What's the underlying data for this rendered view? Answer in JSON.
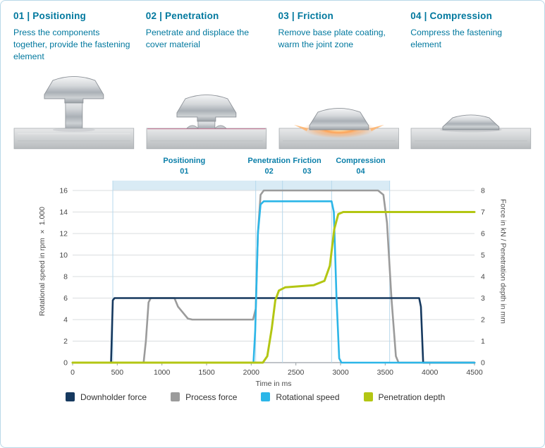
{
  "steps": [
    {
      "heading": "01 | Positioning",
      "description": "Press the components together, provide the fastening element"
    },
    {
      "heading": "02 | Penetration",
      "description": "Penetrate and displace the cover material"
    },
    {
      "heading": "03 | Friction",
      "description": "Remove base plate coating, warm the joint zone"
    },
    {
      "heading": "04 | Compression",
      "description": "Compress the fastening element"
    }
  ],
  "chart_data": {
    "type": "line",
    "x_axis": {
      "label": "Time in ms",
      "min": 0,
      "max": 4500,
      "ticks": [
        0,
        500,
        1000,
        1500,
        2000,
        2500,
        3000,
        3500,
        4000,
        4500
      ]
    },
    "y_left": {
      "label": "Rotational speed in rpm × 1.000",
      "min": 0,
      "max": 16,
      "ticks": [
        0,
        2,
        4,
        6,
        8,
        10,
        12,
        14,
        16
      ]
    },
    "y_right": {
      "label": "Force in kN / Penetration depth in mm",
      "min": 0,
      "max": 8,
      "ticks": [
        0,
        1,
        2,
        3,
        4,
        5,
        6,
        7,
        8
      ]
    },
    "grid": true,
    "band_color": "#d9ebf5",
    "phase_line_color": "#b7d9ec",
    "phase_text_color": "#0b7fa9",
    "phases": [
      {
        "label": "Positioning",
        "number": "01",
        "start": 450,
        "end": 2050
      },
      {
        "label": "Penetration",
        "number": "02",
        "start": 2050,
        "end": 2350
      },
      {
        "label": "Friction",
        "number": "03",
        "start": 2350,
        "end": 2900
      },
      {
        "label": "Compression",
        "number": "04",
        "start": 2900,
        "end": 3550
      }
    ],
    "series": [
      {
        "name": "Downholder force",
        "color": "#16395f",
        "axis": "right",
        "unit": "kN",
        "points": [
          [
            0,
            0
          ],
          [
            430,
            0
          ],
          [
            450,
            2.9
          ],
          [
            470,
            3
          ],
          [
            3880,
            3
          ],
          [
            3900,
            2.6
          ],
          [
            3925,
            0
          ],
          [
            4500,
            0
          ]
        ]
      },
      {
        "name": "Process force",
        "color": "#9b9b9b",
        "axis": "right",
        "unit": "kN",
        "points": [
          [
            0,
            0
          ],
          [
            795,
            0
          ],
          [
            820,
            1
          ],
          [
            850,
            2.8
          ],
          [
            875,
            3
          ],
          [
            1140,
            3
          ],
          [
            1180,
            2.6
          ],
          [
            1290,
            2.05
          ],
          [
            1340,
            2
          ],
          [
            2020,
            2
          ],
          [
            2050,
            2.5
          ],
          [
            2075,
            6
          ],
          [
            2105,
            7.8
          ],
          [
            2140,
            8
          ],
          [
            3420,
            8
          ],
          [
            3480,
            7.8
          ],
          [
            3520,
            6.5
          ],
          [
            3570,
            3
          ],
          [
            3620,
            0.3
          ],
          [
            3650,
            0
          ],
          [
            4500,
            0
          ]
        ]
      },
      {
        "name": "Rotational speed",
        "color": "#2cb6e8",
        "axis": "left",
        "unit": "rpm × 1.000",
        "points": [
          [
            0,
            0
          ],
          [
            2025,
            0
          ],
          [
            2045,
            3
          ],
          [
            2075,
            12
          ],
          [
            2105,
            14.7
          ],
          [
            2140,
            15
          ],
          [
            2900,
            15
          ],
          [
            2925,
            14
          ],
          [
            2955,
            6
          ],
          [
            2985,
            0.4
          ],
          [
            3010,
            0
          ],
          [
            4500,
            0
          ]
        ]
      },
      {
        "name": "Penetration depth",
        "color": "#b3c613",
        "axis": "right",
        "unit": "mm",
        "points": [
          [
            0,
            0
          ],
          [
            2130,
            0
          ],
          [
            2180,
            0.3
          ],
          [
            2230,
            1.6
          ],
          [
            2270,
            2.9
          ],
          [
            2310,
            3.35
          ],
          [
            2380,
            3.5
          ],
          [
            2700,
            3.6
          ],
          [
            2820,
            3.8
          ],
          [
            2880,
            4.5
          ],
          [
            2930,
            6.2
          ],
          [
            2975,
            6.9
          ],
          [
            3030,
            7
          ],
          [
            4500,
            7
          ]
        ]
      }
    ],
    "legend": [
      {
        "label": "Downholder force",
        "color": "#16395f"
      },
      {
        "label": "Process force",
        "color": "#9b9b9b"
      },
      {
        "label": "Rotational speed",
        "color": "#2cb6e8"
      },
      {
        "label": "Penetration depth",
        "color": "#b3c613"
      }
    ]
  }
}
